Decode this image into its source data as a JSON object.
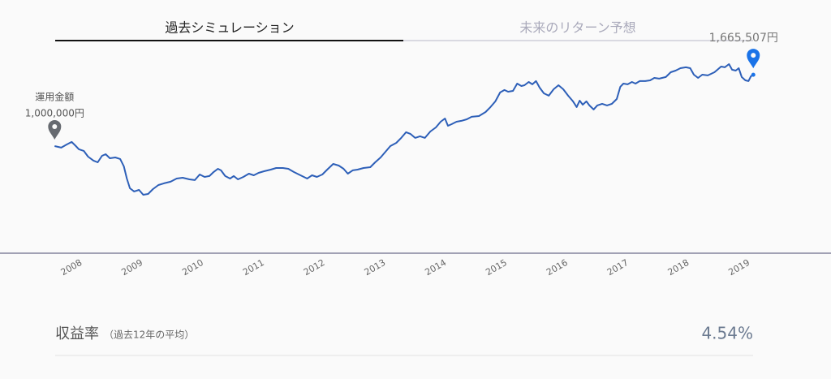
{
  "tabs": [
    "過去シミュレーション",
    "未来のリターン予想"
  ],
  "chart_data": {
    "type": "line",
    "x": [
      2007.72,
      2007.83,
      2007.92,
      2008.0,
      2008.07,
      2008.12,
      2008.2,
      2008.27,
      2008.36,
      2008.43,
      2008.5,
      2008.56,
      2008.63,
      2008.72,
      2008.8,
      2008.86,
      2008.91,
      2008.96,
      2009.03,
      2009.11,
      2009.18,
      2009.26,
      2009.34,
      2009.43,
      2009.52,
      2009.63,
      2009.73,
      2009.83,
      2009.94,
      2010.03,
      2010.11,
      2010.19,
      2010.27,
      2010.34,
      2010.41,
      2010.46,
      2010.53,
      2010.61,
      2010.67,
      2010.74,
      2010.83,
      2010.92,
      2011.0,
      2011.08,
      2011.17,
      2011.28,
      2011.37,
      2011.48,
      2011.57,
      2011.66,
      2011.77,
      2011.88,
      2011.96,
      2012.04,
      2012.13,
      2012.21,
      2012.31,
      2012.4,
      2012.48,
      2012.55,
      2012.63,
      2012.71,
      2012.81,
      2012.92,
      2013.0,
      2013.09,
      2013.17,
      2013.25,
      2013.35,
      2013.43,
      2013.51,
      2013.58,
      2013.66,
      2013.74,
      2013.82,
      2013.91,
      2014.0,
      2014.08,
      2014.15,
      2014.2,
      2014.26,
      2014.34,
      2014.42,
      2014.51,
      2014.59,
      2014.71,
      2014.82,
      2014.9,
      2014.98,
      2015.06,
      2015.13,
      2015.19,
      2015.27,
      2015.34,
      2015.41,
      2015.46,
      2015.53,
      2015.59,
      2015.65,
      2015.71,
      2015.78,
      2015.86,
      2015.94,
      2016.02,
      2016.1,
      2016.18,
      2016.26,
      2016.32,
      2016.37,
      2016.42,
      2016.48,
      2016.53,
      2016.6,
      2016.66,
      2016.74,
      2016.82,
      2016.9,
      2016.98,
      2017.04,
      2017.09,
      2017.16,
      2017.23,
      2017.29,
      2017.36,
      2017.45,
      2017.53,
      2017.6,
      2017.68,
      2017.79,
      2017.87,
      2017.95,
      2018.03,
      2018.12,
      2018.19,
      2018.25,
      2018.32,
      2018.39,
      2018.48,
      2018.59,
      2018.64,
      2018.7,
      2018.76,
      2018.83,
      2018.88,
      2018.94,
      2018.99,
      2019.04,
      2019.1,
      2019.15,
      2019.19,
      2019.23
    ],
    "series": [
      {
        "color": "#2d5fb8",
        "values": [
          1000000,
          985000,
          1015000,
          1038000,
          1000000,
          970000,
          955000,
          901000,
          864000,
          848000,
          909000,
          924000,
          886000,
          894000,
          879000,
          811000,
          697000,
          606000,
          576000,
          591000,
          545000,
          553000,
          598000,
          636000,
          652000,
          667000,
          697000,
          704000,
          689000,
          682000,
          735000,
          712000,
          720000,
          758000,
          788000,
          773000,
          720000,
          697000,
          720000,
          689000,
          712000,
          742000,
          727000,
          750000,
          765000,
          780000,
          795000,
          795000,
          788000,
          758000,
          727000,
          697000,
          727000,
          712000,
          735000,
          780000,
          833000,
          818000,
          788000,
          742000,
          773000,
          780000,
          795000,
          803000,
          848000,
          894000,
          947000,
          1000000,
          1030000,
          1076000,
          1129000,
          1114000,
          1076000,
          1091000,
          1076000,
          1136000,
          1174000,
          1227000,
          1257000,
          1189000,
          1204000,
          1227000,
          1235000,
          1250000,
          1273000,
          1280000,
          1318000,
          1364000,
          1417000,
          1500000,
          1523000,
          1507000,
          1515000,
          1583000,
          1560000,
          1568000,
          1598000,
          1576000,
          1606000,
          1545000,
          1492000,
          1470000,
          1530000,
          1568000,
          1530000,
          1470000,
          1417000,
          1364000,
          1424000,
          1386000,
          1417000,
          1379000,
          1341000,
          1379000,
          1394000,
          1379000,
          1394000,
          1439000,
          1553000,
          1583000,
          1576000,
          1598000,
          1583000,
          1606000,
          1606000,
          1613000,
          1636000,
          1629000,
          1644000,
          1689000,
          1704000,
          1727000,
          1735000,
          1727000,
          1666000,
          1636000,
          1666000,
          1659000,
          1689000,
          1712000,
          1742000,
          1735000,
          1765000,
          1712000,
          1704000,
          1727000,
          1644000,
          1613000,
          1606000,
          1651000,
          1665507
        ]
      }
    ],
    "annotations": [
      {
        "title": "運用金額",
        "value": 1000000,
        "label": "1,000,000円",
        "color": "#666a70"
      },
      {
        "value": 1665507,
        "label": "1,665,507円",
        "color": "#1a73e8"
      }
    ],
    "xlim": [
      2006.82,
      2020.51
    ],
    "ylim": [
      0,
      2060000
    ],
    "xticks": [
      2008,
      2009,
      2010,
      2011,
      2012,
      2013,
      2014,
      2015,
      2016,
      2017,
      2018,
      2019
    ]
  },
  "summary": {
    "label": "収益率",
    "note": "（過去12年の平均）",
    "value": "4.54%"
  }
}
